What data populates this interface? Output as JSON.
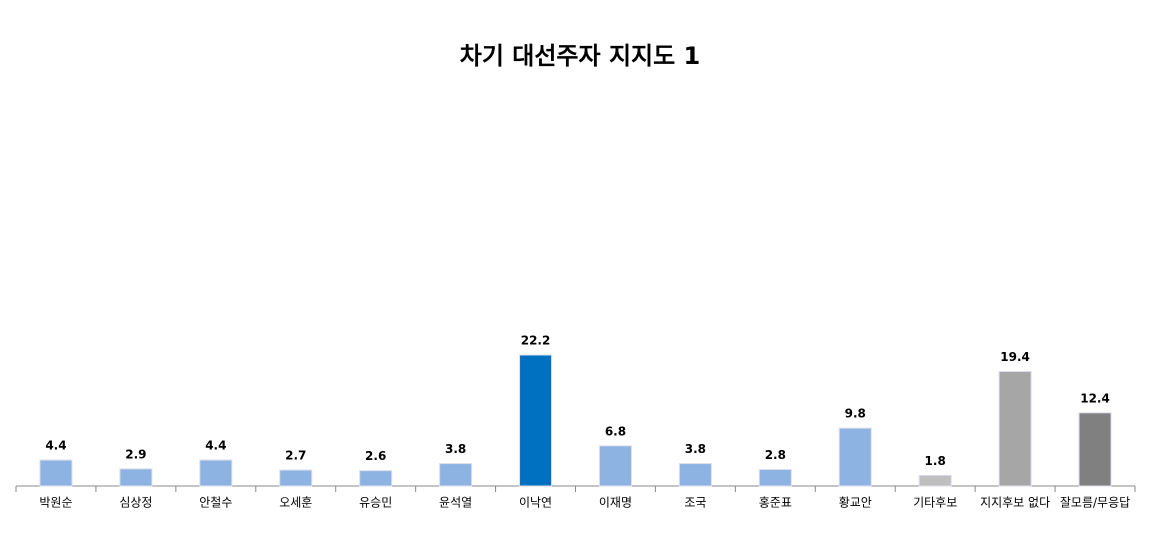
{
  "chart_data": {
    "type": "bar",
    "title": "차기 대선주자 지지도 1",
    "categories": [
      "박원순",
      "심상정",
      "안철수",
      "오세훈",
      "유승민",
      "윤석열",
      "이낙연",
      "이재명",
      "조국",
      "홍준표",
      "황교안",
      "기타후보",
      "지지후보 없다",
      "잘모름/무응답"
    ],
    "values": [
      4.4,
      2.9,
      4.4,
      2.7,
      2.6,
      3.8,
      22.2,
      6.8,
      3.8,
      2.8,
      9.8,
      1.8,
      19.4,
      12.4
    ],
    "colors": [
      "#8db3e2",
      "#8db3e2",
      "#8db3e2",
      "#8db3e2",
      "#8db3e2",
      "#8db3e2",
      "#0070c0",
      "#8db3e2",
      "#8db3e2",
      "#8db3e2",
      "#8db3e2",
      "#bfbfbf",
      "#a6a6a6",
      "#808080"
    ]
  }
}
